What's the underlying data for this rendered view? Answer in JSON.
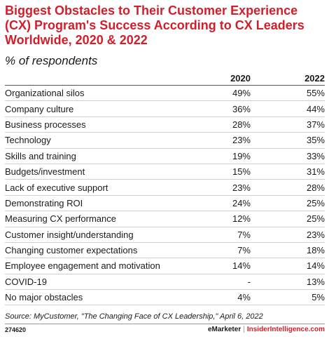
{
  "chart_data": {
    "type": "table",
    "title": "Biggest Obstacles to Their Customer Experience (CX) Program's Success According to CX Leaders Worldwide, 2020 & 2022",
    "subtitle": "% of respondents",
    "columns": [
      "",
      "2020",
      "2022"
    ],
    "rows": [
      {
        "label": "Organizational silos",
        "v2020": "49%",
        "v2022": "55%"
      },
      {
        "label": "Company culture",
        "v2020": "36%",
        "v2022": "44%"
      },
      {
        "label": "Business processes",
        "v2020": "28%",
        "v2022": "37%"
      },
      {
        "label": "Technology",
        "v2020": "23%",
        "v2022": "35%"
      },
      {
        "label": "Skills and training",
        "v2020": "19%",
        "v2022": "33%"
      },
      {
        "label": "Budgets/investment",
        "v2020": "15%",
        "v2022": "31%"
      },
      {
        "label": "Lack of executive support",
        "v2020": "23%",
        "v2022": "28%"
      },
      {
        "label": "Demonstrating ROI",
        "v2020": "24%",
        "v2022": "25%"
      },
      {
        "label": "Measuring CX performance",
        "v2020": "12%",
        "v2022": "25%"
      },
      {
        "label": "Customer insight/understanding",
        "v2020": "7%",
        "v2022": "23%"
      },
      {
        "label": "Changing customer expectations",
        "v2020": "7%",
        "v2022": "18%"
      },
      {
        "label": "Employee engagement and motivation",
        "v2020": "14%",
        "v2022": "14%"
      },
      {
        "label": "COVID-19",
        "v2020": "-",
        "v2022": "13%"
      },
      {
        "label": "No major obstacles",
        "v2020": "4%",
        "v2022": "5%"
      }
    ],
    "source": "Source: MyCustomer, \"The Changing Face of CX Leadership,\" April 6, 2022"
  },
  "footer": {
    "id": "274620",
    "brand_left": "eMarketer",
    "separator": "|",
    "brand_right": "InsiderIntelligence.com"
  },
  "colors": {
    "title": "#d21e2b",
    "text": "#1a1a1a",
    "rule": "#cfcfcf"
  }
}
